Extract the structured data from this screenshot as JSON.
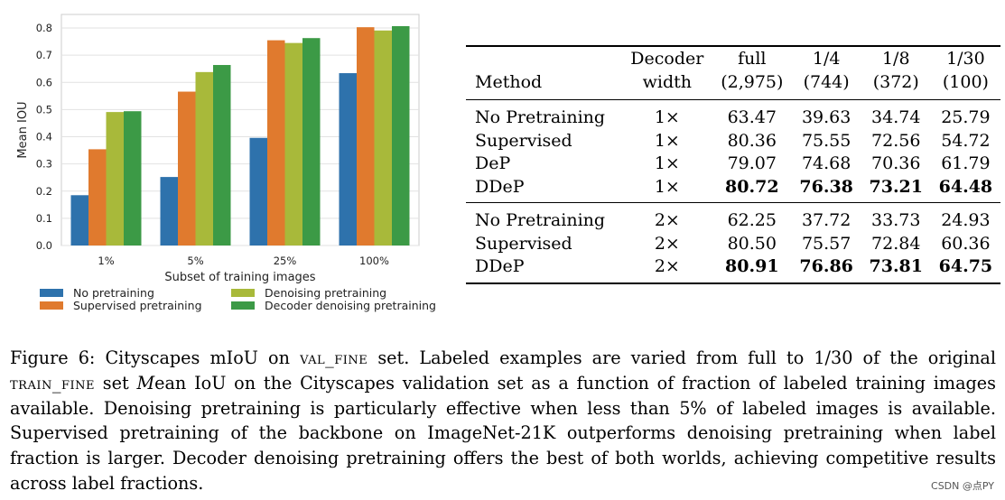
{
  "chart_data": {
    "type": "bar",
    "categories": [
      "1%",
      "5%",
      "25%",
      "100%"
    ],
    "series": [
      {
        "name": "No pretraining",
        "values": [
          0.185,
          0.252,
          0.396,
          0.634
        ],
        "color": "#2e72ac"
      },
      {
        "name": "Supervised pretraining",
        "values": [
          0.354,
          0.566,
          0.755,
          0.803
        ],
        "color": "#e07a2e"
      },
      {
        "name": "Denoising pretraining",
        "values": [
          0.491,
          0.638,
          0.745,
          0.791
        ],
        "color": "#a8b93a"
      },
      {
        "name": "Decoder denoising pretraining",
        "values": [
          0.494,
          0.664,
          0.763,
          0.807
        ],
        "color": "#3c9a46"
      }
    ],
    "yticks": [
      "0.0",
      "0.1",
      "0.2",
      "0.3",
      "0.4",
      "0.5",
      "0.6",
      "0.7",
      "0.8"
    ],
    "ylim": [
      0,
      0.85
    ],
    "xlabel": "Subset of training images",
    "ylabel": "Mean IOU",
    "grid": true,
    "legend_position": "bottom"
  },
  "table": {
    "headers": [
      [
        "Method",
        "Decoder width",
        "full (2,975)",
        "1/4 (744)",
        "1/8 (372)",
        "1/30 (100)"
      ]
    ],
    "header_lines": {
      "method": [
        "",
        "Method"
      ],
      "decoder": [
        "Decoder",
        "width"
      ],
      "full": [
        "full",
        "(2,975)"
      ],
      "q4": [
        "1/4",
        "(744)"
      ],
      "q8": [
        "1/8",
        "(372)"
      ],
      "q30": [
        "1/30",
        "(100)"
      ]
    },
    "group1": [
      {
        "method": "No Pretraining",
        "width": "1×",
        "full": "63.47",
        "q4": "39.63",
        "q8": "34.74",
        "q30": "25.79"
      },
      {
        "method": "Supervised",
        "width": "1×",
        "full": "80.36",
        "q4": "75.55",
        "q8": "72.56",
        "q30": "54.72"
      },
      {
        "method": "DeP",
        "width": "1×",
        "full": "79.07",
        "q4": "74.68",
        "q8": "70.36",
        "q30": "61.79"
      },
      {
        "method": "DDeP",
        "width": "1×",
        "full": "80.72",
        "q4": "76.38",
        "q8": "73.21",
        "q30": "64.48"
      }
    ],
    "group2": [
      {
        "method": "No Pretraining",
        "width": "2×",
        "full": "62.25",
        "q4": "37.72",
        "q8": "33.73",
        "q30": "24.93"
      },
      {
        "method": "Supervised",
        "width": "2×",
        "full": "80.50",
        "q4": "75.57",
        "q8": "72.84",
        "q30": "60.36"
      },
      {
        "method": "DDeP",
        "width": "2×",
        "full": "80.91",
        "q4": "76.86",
        "q8": "73.81",
        "q30": "64.75"
      }
    ]
  },
  "caption": {
    "part1": "Figure 6: Cityscapes mIoU on ",
    "sc1": "val_fine",
    "part2": " set. Labeled examples are varied from full to 1/30 of the original ",
    "sc2": "train_fine",
    "part3": " set ",
    "italic": "M",
    "part4": "ean IoU on the Cityscapes validation set as a function of fraction of labeled training images available. Denoising pretraining is particularly effective when less than 5% of labeled images is available. Supervised pretraining of the backbone on ImageNet-21K outperforms denoising pretraining when label fraction is larger. Decoder denoising pretraining offers the best of both worlds, achieving competitive results across label fractions."
  },
  "watermark": "CSDN @点PY"
}
